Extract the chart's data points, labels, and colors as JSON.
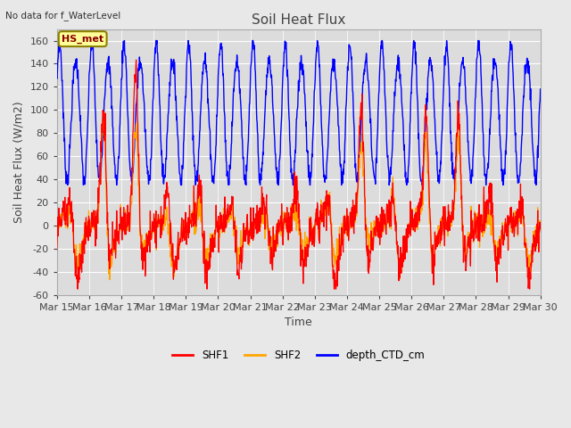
{
  "title": "Soil Heat Flux",
  "top_left_text": "No data for f_WaterLevel",
  "station_label": "HS_met",
  "ylabel": "Soil Heat Flux (W/m2)",
  "xlabel": "Time",
  "ylim": [
    -60,
    170
  ],
  "yticks": [
    -60,
    -40,
    -20,
    0,
    20,
    40,
    60,
    80,
    100,
    120,
    140,
    160
  ],
  "x_tick_labels": [
    "Mar 15",
    "Mar 16",
    "Mar 17",
    "Mar 18",
    "Mar 19",
    "Mar 20",
    "Mar 21",
    "Mar 22",
    "Mar 23",
    "Mar 24",
    "Mar 25",
    "Mar 26",
    "Mar 27",
    "Mar 28",
    "Mar 29",
    "Mar 30"
  ],
  "shf1_color": "#FF0000",
  "shf2_color": "#FFA500",
  "depth_color": "#0000FF",
  "bg_color": "#E8E8E8",
  "plot_bg_color": "#DCDCDC",
  "title_fontsize": 11,
  "label_fontsize": 9,
  "tick_fontsize": 8
}
